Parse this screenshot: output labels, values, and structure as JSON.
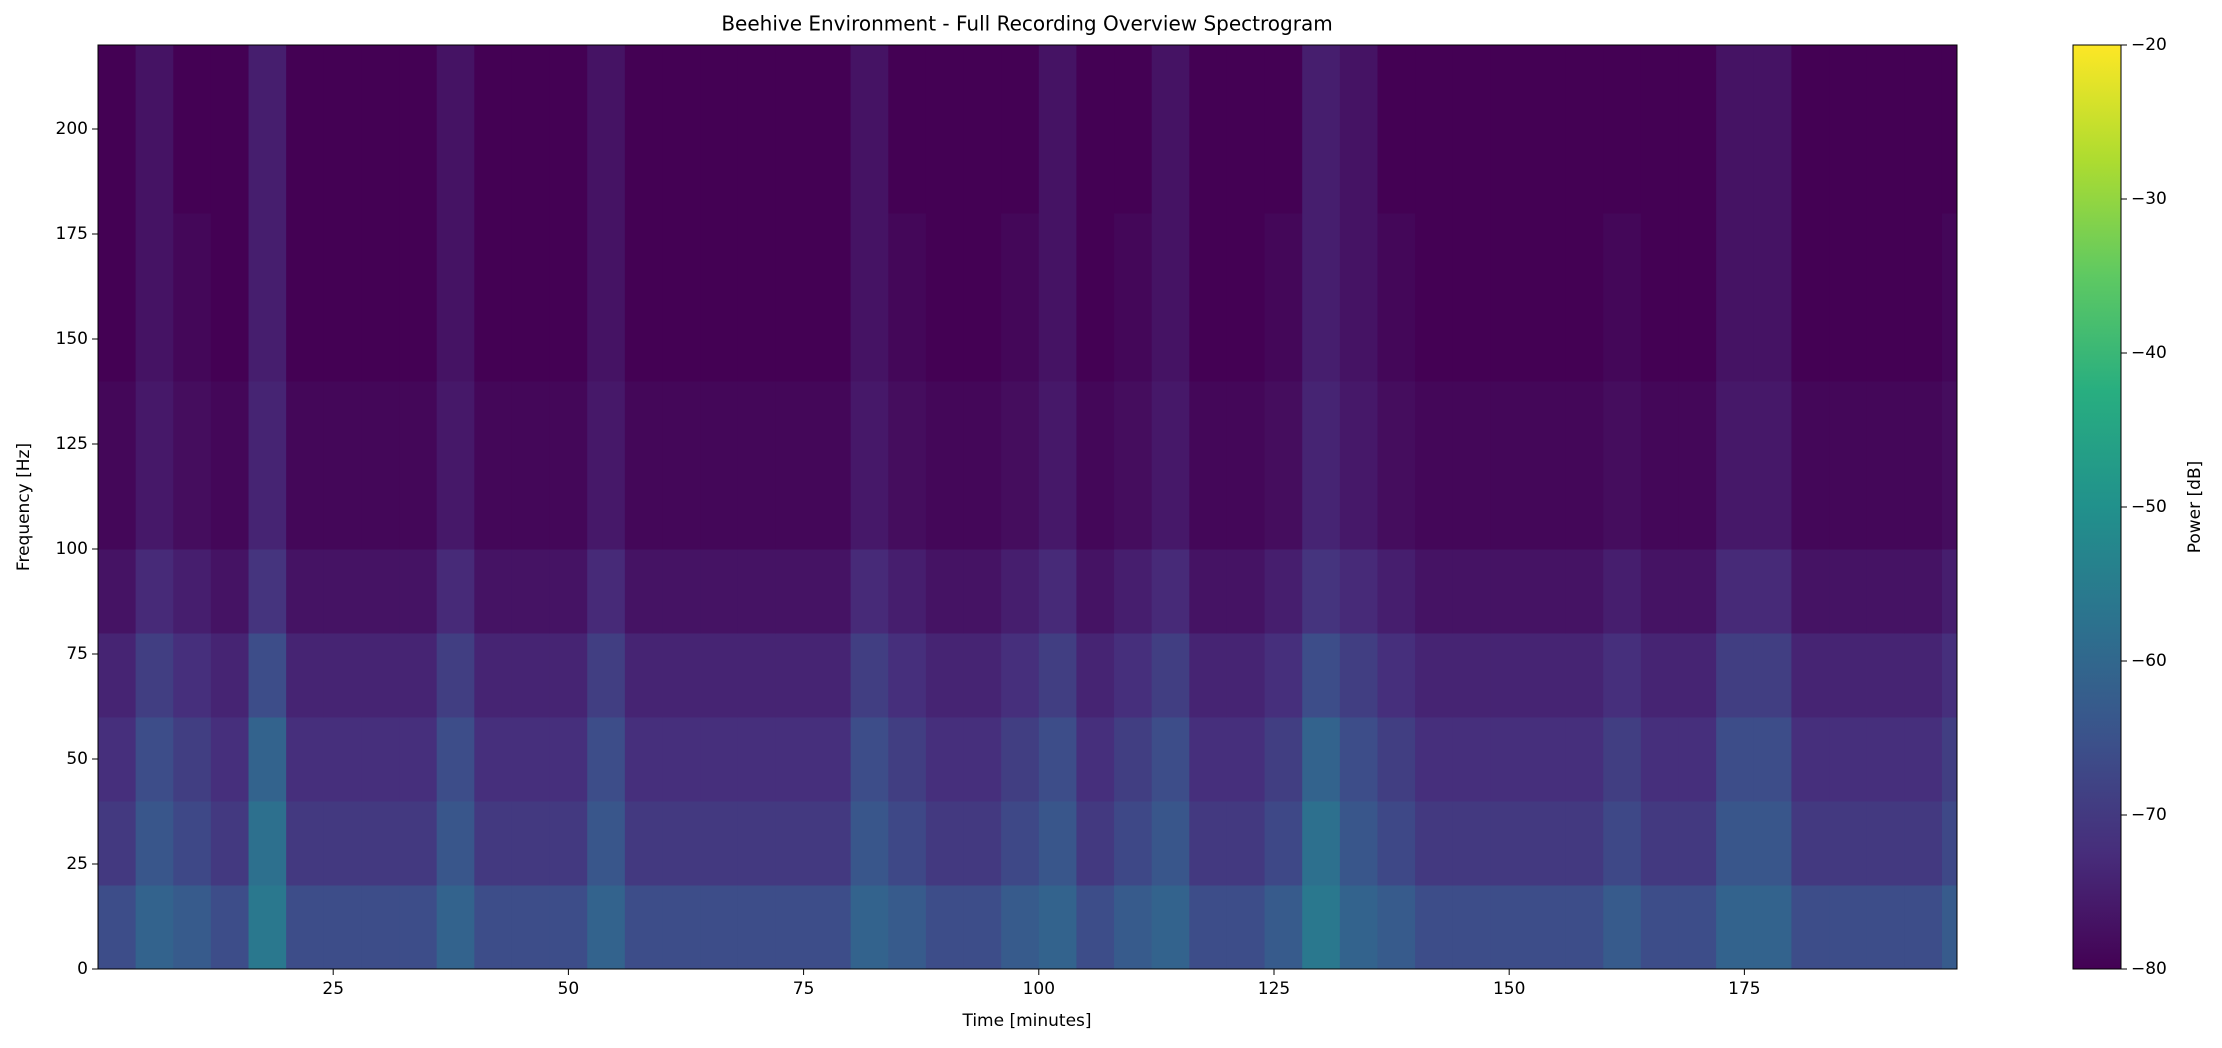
{
  "chart_data": {
    "type": "spectrogram",
    "title": "Beehive Environment - Full Recording Overview Spectrogram",
    "x_label": "Time [minutes]",
    "y_label": "Frequency [Hz]",
    "colorbar_label": "Power [dB]",
    "xlim": [
      0,
      197.6
    ],
    "ylim": [
      0,
      220
    ],
    "xticks": [
      25,
      50,
      75,
      100,
      125,
      150,
      175
    ],
    "yticks": [
      0,
      25,
      50,
      75,
      100,
      125,
      150,
      175,
      200
    ],
    "clim": [
      -80,
      -20
    ],
    "cticks": [
      {
        "value": -80,
        "label": "−80"
      },
      {
        "value": -70,
        "label": "−70"
      },
      {
        "value": -60,
        "label": "−60"
      },
      {
        "value": -50,
        "label": "−50"
      },
      {
        "value": -40,
        "label": "−40"
      },
      {
        "value": -30,
        "label": "−30"
      },
      {
        "value": -20,
        "label": "−20"
      }
    ],
    "colormap": "viridis",
    "x": [
      0,
      4,
      8,
      12,
      16,
      20,
      24,
      28,
      32,
      36,
      40,
      44,
      48,
      52,
      56,
      60,
      64,
      68,
      72,
      76,
      80,
      84,
      88,
      92,
      96,
      100,
      104,
      108,
      112,
      116,
      120,
      124,
      128,
      132,
      136,
      140,
      144,
      148,
      152,
      156,
      160,
      164,
      168,
      172,
      176,
      180,
      184,
      188,
      192,
      196,
      197.6
    ],
    "y": [
      0,
      20,
      40,
      60,
      80,
      100,
      120,
      140,
      160,
      180,
      200,
      220
    ],
    "values": [
      [
        -66,
        -61,
        -63,
        -66,
        -56,
        -66,
        -66,
        -66,
        -66,
        -61,
        -66,
        -66,
        -66,
        -61,
        -66,
        -66,
        -66,
        -66,
        -66,
        -66,
        -61,
        -63,
        -66,
        -66,
        -63,
        -61,
        -66,
        -63,
        -61,
        -66,
        -66,
        -63,
        -56,
        -61,
        -63,
        -66,
        -66,
        -66,
        -66,
        -66,
        -63,
        -66,
        -66,
        -61,
        -61,
        -66,
        -66,
        -66,
        -66,
        -63
      ],
      [
        -70,
        -64,
        -67,
        -70,
        -58,
        -70,
        -70,
        -70,
        -70,
        -64,
        -70,
        -70,
        -70,
        -64,
        -70,
        -70,
        -70,
        -70,
        -70,
        -70,
        -64,
        -67,
        -70,
        -70,
        -67,
        -64,
        -70,
        -67,
        -64,
        -70,
        -70,
        -67,
        -58,
        -64,
        -67,
        -70,
        -70,
        -70,
        -70,
        -70,
        -67,
        -70,
        -70,
        -64,
        -64,
        -70,
        -70,
        -70,
        -70,
        -67
      ],
      [
        -72,
        -66,
        -69,
        -72,
        -61,
        -72,
        -72,
        -72,
        -72,
        -66,
        -72,
        -72,
        -72,
        -66,
        -72,
        -72,
        -72,
        -72,
        -72,
        -72,
        -66,
        -69,
        -72,
        -72,
        -69,
        -66,
        -72,
        -69,
        -66,
        -72,
        -72,
        -69,
        -61,
        -66,
        -69,
        -72,
        -72,
        -72,
        -72,
        -72,
        -69,
        -72,
        -72,
        -66,
        -66,
        -72,
        -72,
        -72,
        -72,
        -69
      ],
      [
        -74,
        -69,
        -72,
        -74,
        -66,
        -74,
        -74,
        -74,
        -74,
        -69,
        -74,
        -74,
        -74,
        -69,
        -74,
        -74,
        -74,
        -74,
        -74,
        -74,
        -69,
        -72,
        -74,
        -74,
        -72,
        -69,
        -74,
        -72,
        -69,
        -74,
        -74,
        -72,
        -66,
        -69,
        -72,
        -74,
        -74,
        -74,
        -74,
        -74,
        -72,
        -74,
        -74,
        -69,
        -69,
        -74,
        -74,
        -74,
        -74,
        -72
      ],
      [
        -77,
        -73,
        -75,
        -77,
        -71,
        -77,
        -77,
        -77,
        -77,
        -73,
        -77,
        -77,
        -77,
        -73,
        -77,
        -77,
        -77,
        -77,
        -77,
        -77,
        -73,
        -75,
        -77,
        -77,
        -75,
        -73,
        -77,
        -75,
        -73,
        -77,
        -77,
        -75,
        -71,
        -73,
        -75,
        -77,
        -77,
        -77,
        -77,
        -77,
        -75,
        -77,
        -77,
        -73,
        -73,
        -77,
        -77,
        -77,
        -77,
        -75
      ],
      [
        -79,
        -76,
        -78,
        -79,
        -74,
        -79,
        -79,
        -79,
        -79,
        -76,
        -79,
        -79,
        -79,
        -76,
        -79,
        -79,
        -79,
        -79,
        -79,
        -79,
        -76,
        -78,
        -79,
        -79,
        -78,
        -76,
        -79,
        -78,
        -76,
        -79,
        -79,
        -78,
        -74,
        -76,
        -78,
        -79,
        -79,
        -79,
        -79,
        -79,
        -78,
        -79,
        -79,
        -76,
        -76,
        -79,
        -79,
        -79,
        -79,
        -78
      ],
      [
        -79,
        -76,
        -78,
        -79,
        -74,
        -79,
        -79,
        -79,
        -79,
        -76,
        -79,
        -79,
        -79,
        -76,
        -79,
        -79,
        -79,
        -79,
        -79,
        -79,
        -76,
        -78,
        -79,
        -79,
        -78,
        -76,
        -79,
        -78,
        -76,
        -79,
        -79,
        -78,
        -74,
        -76,
        -78,
        -79,
        -79,
        -79,
        -79,
        -79,
        -78,
        -79,
        -79,
        -76,
        -76,
        -79,
        -79,
        -79,
        -79,
        -78
      ],
      [
        -80,
        -77,
        -79,
        -80,
        -75,
        -80,
        -80,
        -80,
        -80,
        -77,
        -80,
        -80,
        -80,
        -77,
        -80,
        -80,
        -80,
        -80,
        -80,
        -80,
        -77,
        -79,
        -80,
        -80,
        -79,
        -77,
        -80,
        -79,
        -77,
        -80,
        -80,
        -79,
        -75,
        -77,
        -79,
        -80,
        -80,
        -80,
        -80,
        -80,
        -79,
        -80,
        -80,
        -77,
        -77,
        -80,
        -80,
        -80,
        -80,
        -79
      ],
      [
        -80,
        -77,
        -79,
        -80,
        -75,
        -80,
        -80,
        -80,
        -80,
        -77,
        -80,
        -80,
        -80,
        -77,
        -80,
        -80,
        -80,
        -80,
        -80,
        -80,
        -77,
        -79,
        -80,
        -80,
        -79,
        -77,
        -80,
        -79,
        -77,
        -80,
        -80,
        -79,
        -75,
        -77,
        -79,
        -80,
        -80,
        -80,
        -80,
        -80,
        -79,
        -80,
        -80,
        -77,
        -77,
        -80,
        -80,
        -80,
        -80,
        -79
      ],
      [
        -80,
        -77,
        -80,
        -80,
        -75,
        -80,
        -80,
        -80,
        -80,
        -77,
        -80,
        -80,
        -80,
        -77,
        -80,
        -80,
        -80,
        -80,
        -80,
        -80,
        -77,
        -80,
        -80,
        -80,
        -80,
        -77,
        -80,
        -80,
        -77,
        -80,
        -80,
        -80,
        -75,
        -77,
        -80,
        -80,
        -80,
        -80,
        -80,
        -80,
        -80,
        -80,
        -80,
        -77,
        -77,
        -80,
        -80,
        -80,
        -80,
        -80
      ],
      [
        -80,
        -77,
        -80,
        -80,
        -75,
        -80,
        -80,
        -80,
        -80,
        -77,
        -80,
        -80,
        -80,
        -77,
        -80,
        -80,
        -80,
        -80,
        -80,
        -80,
        -77,
        -80,
        -80,
        -80,
        -80,
        -77,
        -80,
        -80,
        -77,
        -80,
        -80,
        -80,
        -75,
        -77,
        -80,
        -80,
        -80,
        -80,
        -80,
        -80,
        -80,
        -80,
        -80,
        -77,
        -77,
        -80,
        -80,
        -80,
        -80,
        -80
      ]
    ]
  }
}
